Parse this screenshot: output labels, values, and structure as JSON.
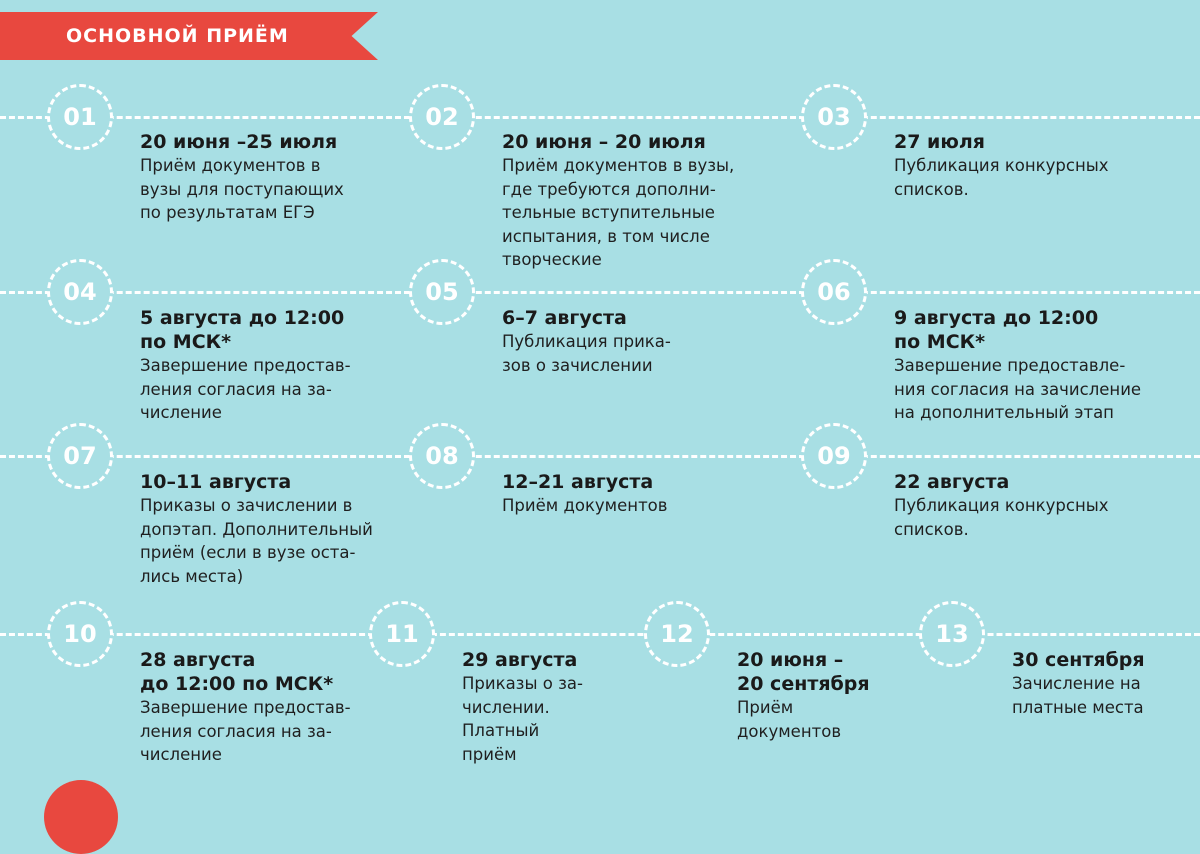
{
  "header": {
    "title": "ОСНОВНОЙ ПРИЁМ"
  },
  "colors": {
    "background": "#a8dfe4",
    "accent": "#e8483f",
    "lines": "#ffffff"
  },
  "steps": [
    {
      "number": "01",
      "date": "20 июня –25 июля",
      "desc": "Приём документов в\nвузы для поступающих\nпо результатам ЕГЭ"
    },
    {
      "number": "02",
      "date": "20 июня – 20 июля",
      "desc": "Приём документов в вузы,\nгде требуются дополни-\nтельные вступительные\nиспытания, в том числе\nтворческие"
    },
    {
      "number": "03",
      "date": "27 июля",
      "desc": "Публикация конкурсных\nсписков."
    },
    {
      "number": "04",
      "date": "5 августа до 12:00\nпо МСК*",
      "desc": "Завершение предостав-\nления согласия на за-\nчисление"
    },
    {
      "number": "05",
      "date": "6–7 августа",
      "desc": "Публикация прика-\nзов о зачислении"
    },
    {
      "number": "06",
      "date": "9 августа до 12:00\nпо МСК*",
      "desc": "Завершение предоставле-\nния согласия на зачисление\nна дополнительный этап"
    },
    {
      "number": "07",
      "date": "10–11 августа",
      "desc": "Приказы о зачислении в\nдопэтап. Дополнительный\nприём (если в вузе оста-\nлись места)"
    },
    {
      "number": "08",
      "date": "12–21 августа",
      "desc": "Приём документов"
    },
    {
      "number": "09",
      "date": "22 августа",
      "desc": "Публикация конкурсных\nсписков."
    },
    {
      "number": "10",
      "date": "28 августа\nдо 12:00 по МСК*",
      "desc": "Завершение предостав-\nления согласия на за-\nчисление"
    },
    {
      "number": "11",
      "date": "29 августа",
      "desc": "Приказы о за-\nчислении.\nПлатный\nприём"
    },
    {
      "number": "12",
      "date": "20 июня –\n20 сентября",
      "desc": "Приём\nдокументов"
    },
    {
      "number": "13",
      "date": "30 сентября",
      "desc": "Зачисление на\nплатные места"
    }
  ]
}
